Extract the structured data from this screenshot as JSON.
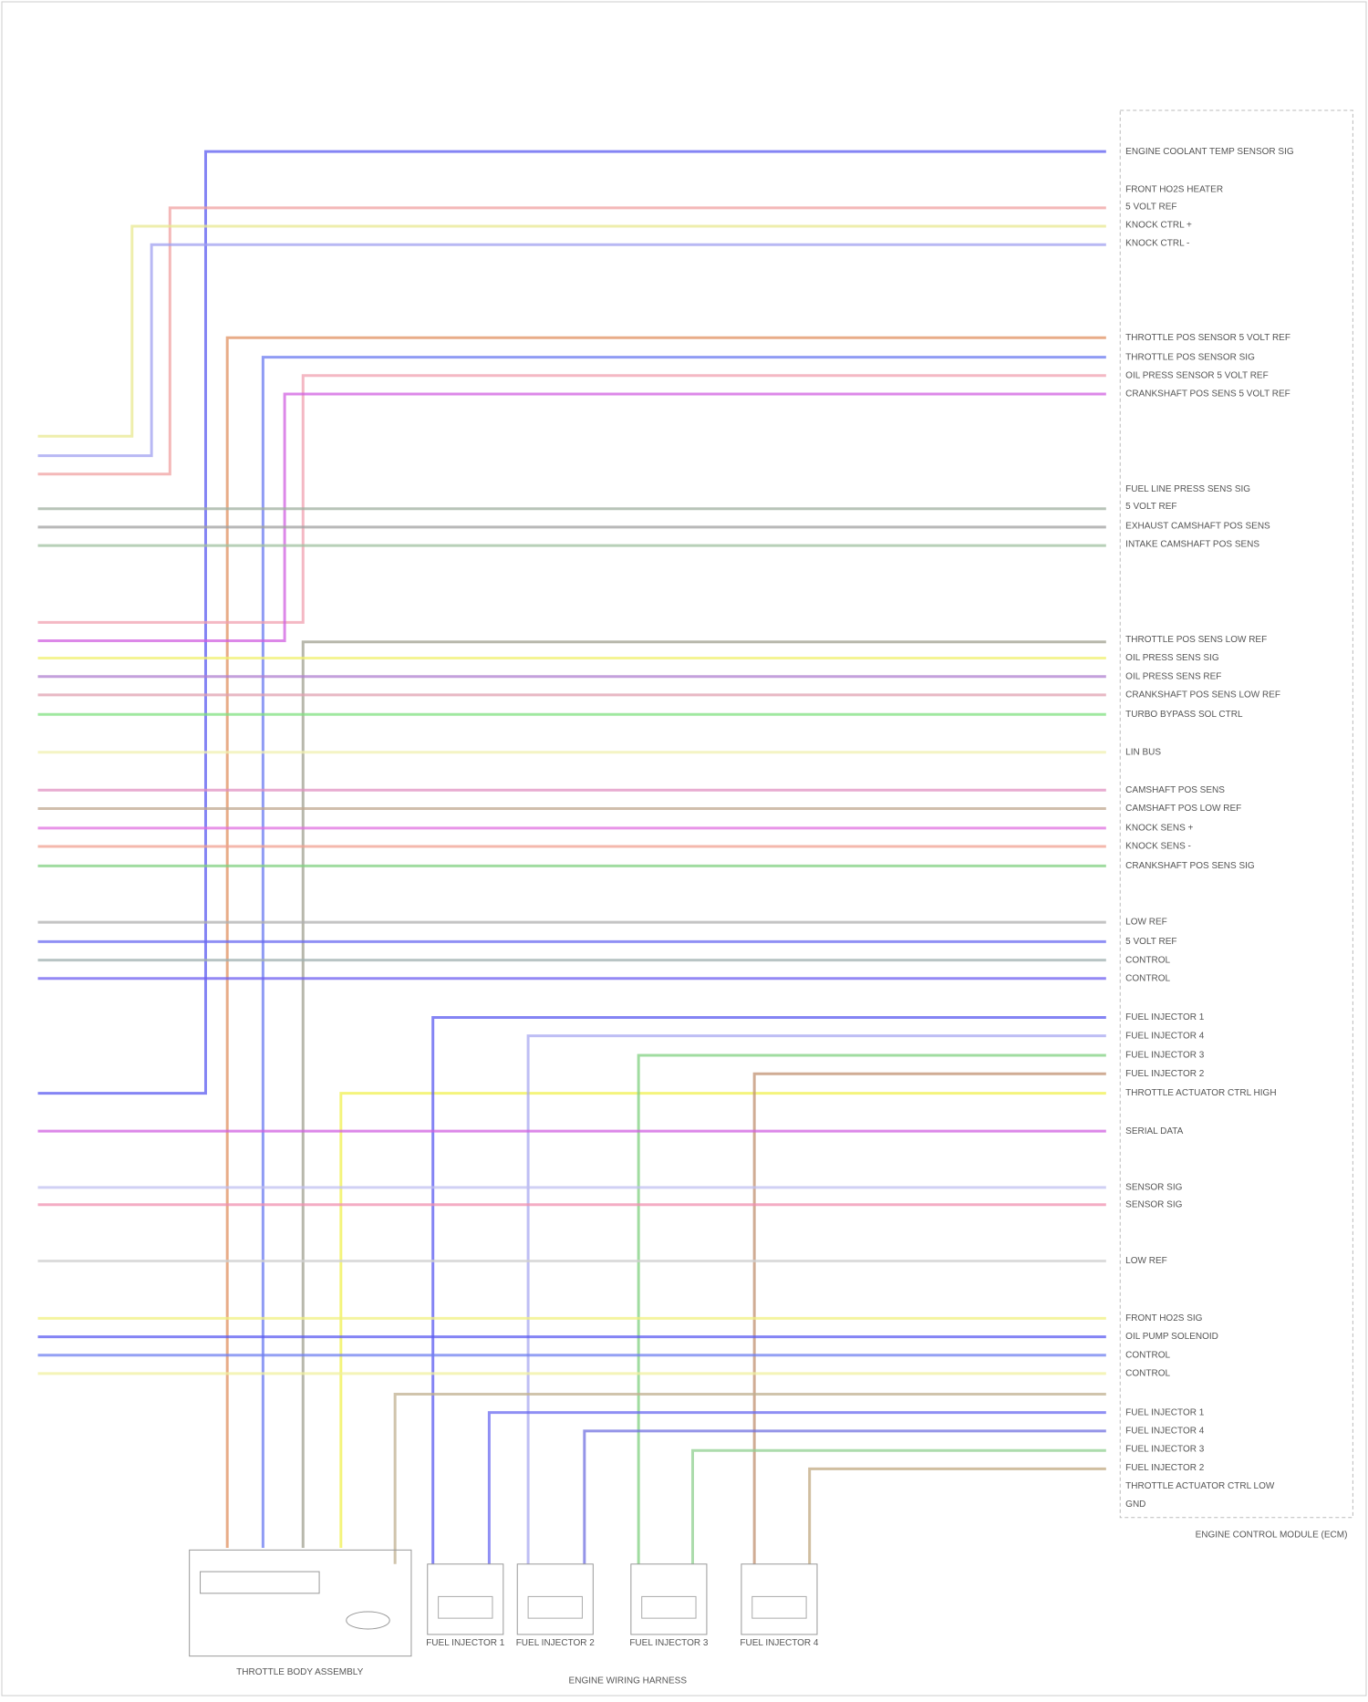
{
  "diagram": {
    "ecm": {
      "title": "ENGINE CONTROL MODULE (ECM)",
      "pins": [
        "ENGINE COOLANT TEMP SENSOR SIG",
        "FRONT HO2S HEATER",
        "5 VOLT REF",
        "KNOCK CTRL +",
        "KNOCK CTRL -",
        "THROTTLE POS SENSOR 5 VOLT REF",
        "THROTTLE POS SENSOR SIG",
        "OIL PRESS SENSOR 5 VOLT REF",
        "CRANKSHAFT POS SENS 5 VOLT REF",
        "FUEL LINE PRESS SENS SIG",
        "5 VOLT REF",
        "EXHAUST CAMSHAFT POS SENS",
        "INTAKE CAMSHAFT POS SENS",
        "THROTTLE POS SENS LOW REF",
        "OIL PRESS SENS SIG",
        "OIL PRESS SENS REF",
        "CRANKSHAFT POS SENS LOW REF",
        "TURBO BYPASS SOL CTRL",
        "LIN BUS",
        "CAMSHAFT POS SENS",
        "CAMSHAFT POS LOW REF",
        "KNOCK SENS +",
        "KNOCK SENS -",
        "CRANKSHAFT POS SENS SIG",
        "LOW REF",
        "5 VOLT REF",
        "CONTROL",
        "CONTROL",
        "FUEL INJECTOR 1",
        "FUEL INJECTOR 4",
        "FUEL INJECTOR 3",
        "FUEL INJECTOR 2",
        "THROTTLE ACTUATOR CTRL HIGH",
        "SERIAL DATA",
        "SENSOR SIG",
        "SENSOR SIG",
        "LOW REF",
        "FRONT HO2S SIG",
        "OIL PUMP SOLENOID",
        "CONTROL",
        "CONTROL",
        "FUEL INJECTOR 1",
        "FUEL INJECTOR 4",
        "FUEL INJECTOR 3",
        "FUEL INJECTOR 2",
        "THROTTLE ACTUATOR CTRL LOW",
        "GND"
      ]
    },
    "components": [
      "THROTTLE BODY ASSEMBLY",
      "FUEL INJECTOR 1",
      "FUEL INJECTOR 2",
      "FUEL INJECTOR 3",
      "FUEL INJECTOR 4"
    ],
    "footer": "ENGINE WIRING HARNESS"
  }
}
